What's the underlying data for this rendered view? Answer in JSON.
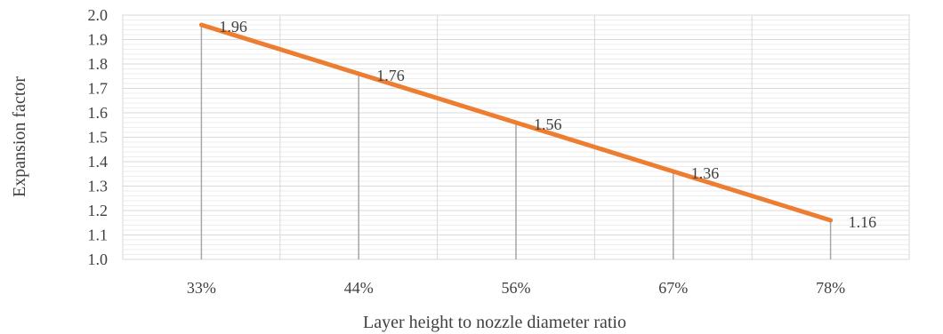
{
  "chart_data": {
    "type": "line",
    "categories": [
      "33%",
      "44%",
      "56%",
      "67%",
      "78%"
    ],
    "series": [
      {
        "values": [
          1.96,
          1.76,
          1.56,
          1.36,
          1.16
        ],
        "color": "#ED7D31"
      }
    ],
    "data_labels": [
      "1.96",
      "1.76",
      "1.56",
      "1.36",
      "1.16"
    ],
    "xlabel": "Layer height to nozzle diameter ratio",
    "ylabel": "Expansion  factor",
    "ylim": [
      1.0,
      2.0
    ],
    "yticks": [
      "1.0",
      "1.1",
      "1.2",
      "1.3",
      "1.4",
      "1.5",
      "1.6",
      "1.7",
      "1.8",
      "1.9",
      "2.0"
    ],
    "grid": true,
    "drop_lines": true,
    "legend": "none"
  }
}
